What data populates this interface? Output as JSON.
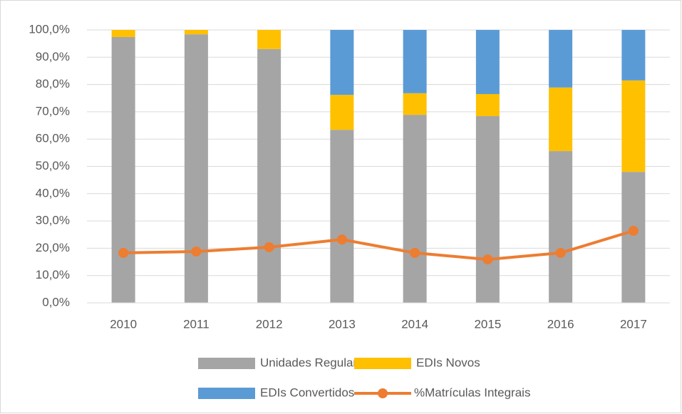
{
  "chart_data": {
    "type": "bar",
    "stacked": true,
    "categories": [
      "2010",
      "2011",
      "2012",
      "2013",
      "2014",
      "2015",
      "2016",
      "2017"
    ],
    "series": [
      {
        "name": "Unidades Regulares",
        "color": "#a5a5a5",
        "values": [
          97.4,
          98.4,
          93.0,
          63.4,
          68.9,
          68.4,
          55.6,
          48.0
        ]
      },
      {
        "name": "EDIs Novos",
        "color": "#ffc000",
        "values": [
          2.6,
          1.6,
          7.0,
          12.8,
          7.9,
          8.1,
          23.3,
          33.5
        ]
      },
      {
        "name": "EDIs Convertidos",
        "color": "#5b9bd5",
        "values": [
          0,
          0,
          0,
          23.8,
          23.2,
          23.5,
          21.1,
          18.5
        ]
      },
      {
        "name": "%Matrículas Integrais",
        "color": "#ed7d31",
        "type": "line",
        "values": [
          18.3,
          18.8,
          20.4,
          23.2,
          18.3,
          15.9,
          18.3,
          26.4
        ]
      }
    ],
    "ylim": [
      0,
      100
    ],
    "yticks": [
      {
        "value": 0,
        "label": "0,0%"
      },
      {
        "value": 10,
        "label": "10,0%"
      },
      {
        "value": 20,
        "label": "20,0%"
      },
      {
        "value": 30,
        "label": "30,0%"
      },
      {
        "value": 40,
        "label": "40,0%"
      },
      {
        "value": 50,
        "label": "50,0%"
      },
      {
        "value": 60,
        "label": "60,0%"
      },
      {
        "value": 70,
        "label": "70,0%"
      },
      {
        "value": 80,
        "label": "80,0%"
      },
      {
        "value": 90,
        "label": "90,0%"
      },
      {
        "value": 100,
        "label": "100,0%"
      }
    ],
    "grid": true,
    "legend": "bottom"
  }
}
